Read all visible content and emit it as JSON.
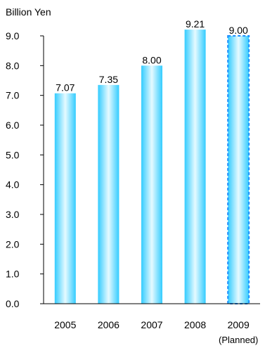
{
  "chart_data": {
    "type": "bar",
    "ylabel": "Billion Yen",
    "categories": [
      "2005",
      "2006",
      "2007",
      "2008",
      "2009"
    ],
    "category_sublabels": [
      "",
      "",
      "",
      "",
      "(Planned)"
    ],
    "values": [
      7.07,
      7.35,
      8.0,
      9.21,
      9.0
    ],
    "data_labels": [
      "7.07",
      "7.35",
      "8.00",
      "9.21",
      "9.00"
    ],
    "planned_flags": [
      false,
      false,
      false,
      false,
      true
    ],
    "ylim": [
      0,
      9.0
    ],
    "yticks": [
      "0.0",
      "1.0",
      "2.0",
      "3.0",
      "4.0",
      "5.0",
      "6.0",
      "7.0",
      "8.0",
      "9.0"
    ],
    "grid": false,
    "legend": "none",
    "colors": {
      "bar_edge": "#33CCFF",
      "bar_center": "#E6FAFF",
      "planned_outline": "#1E90FF",
      "axis": "#000000"
    }
  }
}
